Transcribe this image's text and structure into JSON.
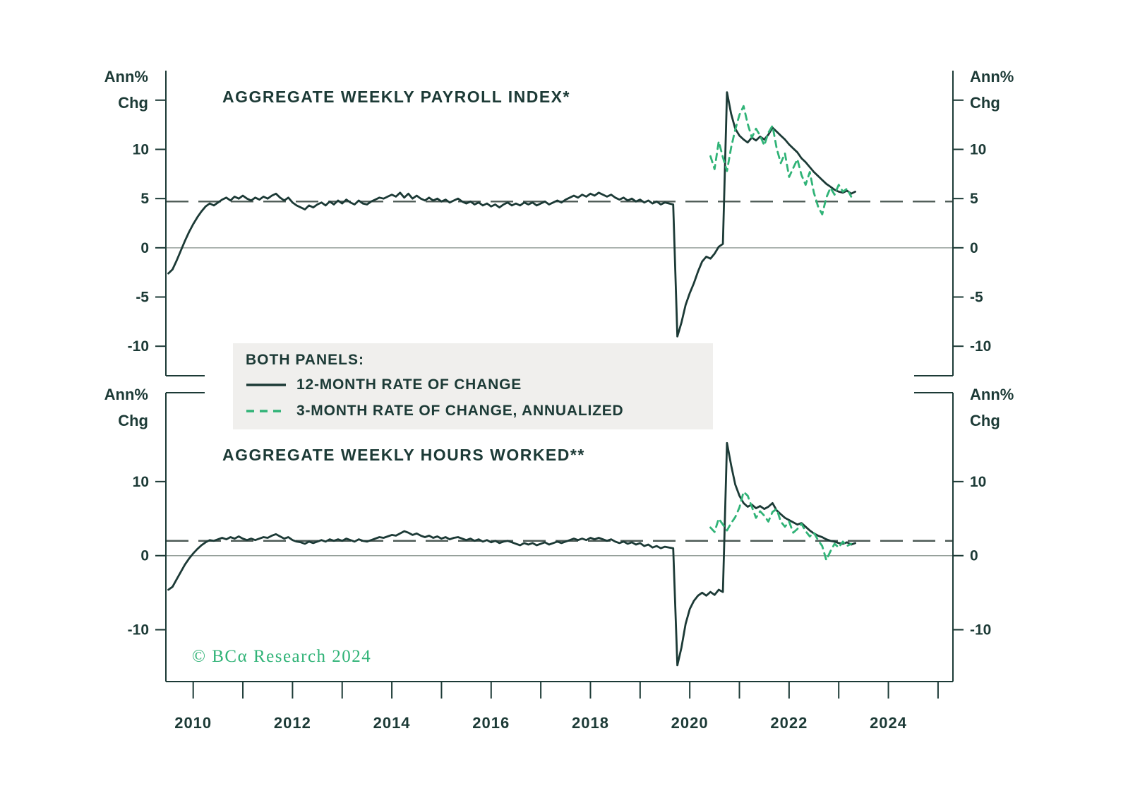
{
  "colors": {
    "background": "#ffffff",
    "dark": "#1c3a36",
    "green": "#30b377",
    "zero_line": "#97a19c",
    "average_line": "#4d5b56",
    "legend_bg": "#f0efed"
  },
  "labels": {
    "y_axis_unit_line1": "Ann%",
    "y_axis_unit_line2": "Chg",
    "copyright": "© BCα Research 2024"
  },
  "legend": {
    "title": "BOTH PANELS:",
    "items": [
      {
        "label": "12-MONTH RATE OF CHANGE",
        "line_style": "solid"
      },
      {
        "label": "3-MONTH RATE OF CHANGE, ANNUALIZED",
        "line_style": "dashed"
      }
    ]
  },
  "x_axis": {
    "range": [
      2009.95,
      2025.8
    ],
    "tick_years": [
      2010,
      2011,
      2012,
      2013,
      2014,
      2015,
      2016,
      2017,
      2018,
      2019,
      2020,
      2021,
      2022,
      2023,
      2024,
      2025
    ],
    "labeled_years": [
      "2010",
      "2012",
      "2014",
      "2016",
      "2018",
      "2020",
      "2022",
      "2024"
    ]
  },
  "chart_data": [
    {
      "type": "line",
      "title": "AGGREGATE WEEKLY PAYROLL INDEX*",
      "ylabel": "Ann% Chg",
      "ylim": [
        -13,
        18
      ],
      "ytick_labels": [
        10,
        5,
        0,
        -5,
        -10
      ],
      "ytick_marks": [
        15,
        10,
        5,
        0,
        -5,
        -10
      ],
      "average_line": 4.7,
      "grid": "zero-line-only",
      "series": [
        {
          "name": "12-MONTH RATE OF CHANGE",
          "line_style": "solid",
          "color_key": "dark",
          "x_start": 2010.0,
          "x_step_years": 0.083333,
          "y": [
            -2.6,
            -2.2,
            -1.3,
            -0.3,
            0.7,
            1.6,
            2.4,
            3.1,
            3.7,
            4.2,
            4.5,
            4.3,
            4.6,
            4.9,
            5.1,
            4.8,
            5.2,
            5.0,
            5.3,
            5.0,
            4.8,
            5.1,
            4.9,
            5.2,
            5.0,
            5.3,
            5.5,
            5.1,
            4.8,
            5.1,
            4.6,
            4.3,
            4.1,
            3.9,
            4.3,
            4.1,
            4.4,
            4.6,
            4.3,
            4.7,
            4.4,
            4.8,
            4.5,
            4.9,
            4.6,
            4.4,
            4.8,
            4.5,
            4.4,
            4.7,
            4.9,
            5.1,
            5.0,
            5.2,
            5.4,
            5.2,
            5.6,
            5.1,
            5.5,
            5.0,
            5.3,
            5.0,
            4.8,
            5.1,
            4.8,
            5.0,
            4.7,
            4.9,
            4.6,
            4.8,
            5.0,
            4.7,
            4.5,
            4.7,
            4.4,
            4.6,
            4.3,
            4.5,
            4.2,
            4.4,
            4.1,
            4.4,
            4.6,
            4.3,
            4.5,
            4.3,
            4.6,
            4.4,
            4.6,
            4.3,
            4.5,
            4.7,
            4.4,
            4.6,
            4.8,
            4.6,
            4.9,
            5.1,
            5.3,
            5.1,
            5.4,
            5.2,
            5.5,
            5.3,
            5.6,
            5.4,
            5.2,
            5.4,
            5.1,
            4.9,
            5.1,
            4.8,
            5.0,
            4.7,
            4.9,
            4.6,
            4.8,
            4.5,
            4.7,
            4.4,
            4.6,
            4.5,
            4.4,
            -9.0,
            -7.6,
            -5.8,
            -4.6,
            -3.6,
            -2.4,
            -1.4,
            -0.9,
            -1.1,
            -0.6,
            0.1,
            0.4,
            15.8,
            13.6,
            12.1,
            11.4,
            11.0,
            10.7,
            11.2,
            10.9,
            11.3,
            11.0,
            11.5,
            12.2,
            11.8,
            11.4,
            11.0,
            10.5,
            10.1,
            9.7,
            9.1,
            8.7,
            8.2,
            7.7,
            7.3,
            6.9,
            6.5,
            6.2,
            5.9,
            5.7,
            5.6,
            5.8,
            5.5,
            5.7
          ]
        },
        {
          "name": "3-MONTH RATE OF CHANGE, ANNUALIZED",
          "line_style": "dashed",
          "color_key": "green",
          "x_start": 2020.9167,
          "x_step_years": 0.083333,
          "y": [
            9.3,
            8.0,
            10.8,
            9.2,
            7.8,
            10.2,
            12.0,
            13.5,
            14.4,
            12.6,
            11.2,
            12.1,
            11.4,
            10.4,
            11.7,
            12.4,
            10.1,
            8.6,
            9.6,
            7.2,
            8.1,
            9.0,
            7.4,
            6.4,
            7.7,
            5.6,
            4.2,
            3.4,
            5.1,
            6.1,
            5.4,
            6.4,
            5.7,
            6.0,
            5.2
          ]
        }
      ]
    },
    {
      "type": "line",
      "title": "AGGREGATE WEEKLY HOURS WORKED**",
      "ylabel": "Ann% Chg",
      "ylim": [
        -17,
        22
      ],
      "ytick_labels": [
        10,
        0,
        -10
      ],
      "ytick_marks": [
        10,
        0,
        -10
      ],
      "average_line": 2.0,
      "grid": "zero-line-only",
      "series": [
        {
          "name": "12-MONTH RATE OF CHANGE",
          "line_style": "solid",
          "color_key": "dark",
          "x_start": 2010.0,
          "x_step_years": 0.083333,
          "y": [
            -4.6,
            -4.2,
            -3.2,
            -2.2,
            -1.2,
            -0.4,
            0.3,
            0.9,
            1.4,
            1.8,
            2.1,
            2.0,
            2.2,
            2.4,
            2.2,
            2.5,
            2.3,
            2.6,
            2.3,
            2.1,
            2.3,
            2.1,
            2.3,
            2.5,
            2.4,
            2.7,
            2.9,
            2.6,
            2.3,
            2.5,
            2.1,
            1.9,
            1.8,
            1.6,
            1.9,
            1.7,
            1.9,
            2.1,
            1.9,
            2.2,
            2.0,
            2.2,
            2.0,
            2.3,
            2.1,
            1.9,
            2.2,
            2.0,
            1.9,
            2.1,
            2.3,
            2.5,
            2.4,
            2.6,
            2.8,
            2.7,
            3.0,
            3.3,
            3.1,
            2.8,
            3.0,
            2.7,
            2.5,
            2.7,
            2.4,
            2.6,
            2.3,
            2.5,
            2.2,
            2.4,
            2.5,
            2.3,
            2.1,
            2.3,
            2.0,
            2.2,
            1.9,
            2.1,
            1.8,
            2.0,
            1.7,
            1.9,
            2.0,
            1.8,
            1.6,
            1.4,
            1.7,
            1.5,
            1.7,
            1.4,
            1.6,
            1.8,
            1.5,
            1.7,
            1.9,
            1.7,
            1.9,
            2.1,
            2.3,
            2.1,
            2.3,
            2.1,
            2.4,
            2.2,
            2.4,
            2.2,
            2.0,
            2.2,
            1.9,
            1.7,
            1.9,
            1.6,
            1.8,
            1.5,
            1.7,
            1.3,
            1.5,
            1.1,
            1.3,
            1.0,
            1.2,
            1.1,
            1.0,
            -14.8,
            -12.4,
            -9.2,
            -7.2,
            -6.1,
            -5.4,
            -5.0,
            -5.4,
            -4.9,
            -5.3,
            -4.6,
            -4.9,
            15.2,
            12.2,
            9.6,
            8.1,
            7.1,
            6.6,
            6.9,
            6.4,
            6.7,
            6.3,
            6.6,
            7.1,
            6.1,
            5.6,
            5.1,
            4.8,
            4.5,
            4.2,
            4.4,
            3.9,
            3.4,
            3.0,
            2.7,
            2.5,
            2.2,
            2.0,
            1.9,
            1.7,
            1.6,
            1.8,
            1.5,
            1.7
          ]
        },
        {
          "name": "3-MONTH RATE OF CHANGE, ANNUALIZED",
          "line_style": "dashed",
          "color_key": "green",
          "x_start": 2020.9167,
          "x_step_years": 0.083333,
          "y": [
            3.8,
            3.2,
            5.0,
            4.2,
            3.4,
            4.4,
            5.2,
            6.5,
            8.6,
            8.1,
            6.6,
            5.1,
            6.0,
            5.4,
            4.6,
            5.9,
            6.3,
            4.6,
            3.9,
            4.6,
            3.1,
            3.6,
            4.3,
            3.3,
            2.6,
            3.1,
            2.1,
            1.3,
            -0.6,
            0.6,
            1.6,
            1.1,
            1.9,
            1.3,
            1.6
          ]
        }
      ]
    }
  ]
}
